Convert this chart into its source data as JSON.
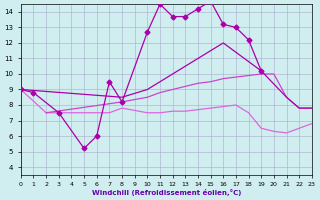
{
  "bg_color": "#d0eef0",
  "grid_color": "#aaaacc",
  "line_color1": "#aa00aa",
  "line_color2": "#aa00aa",
  "line_color3": "#cc44cc",
  "line_color4": "#dd66dd",
  "xlabel": "Windchill (Refroidissement éolien,°C)",
  "xlabel_color": "#6600aa",
  "xlim": [
    0,
    23
  ],
  "ylim": [
    3.5,
    14.5
  ],
  "yticks": [
    4,
    5,
    6,
    7,
    8,
    9,
    10,
    11,
    12,
    13,
    14
  ],
  "line1": {
    "x": [
      0,
      1,
      3,
      5,
      6,
      7,
      8,
      10,
      11,
      12,
      13,
      14,
      15,
      16,
      17,
      18,
      19
    ],
    "y": [
      9,
      8.8,
      7.5,
      5.2,
      6.0,
      9.5,
      8.2,
      12.7,
      14.5,
      13.7,
      13.7,
      14.2,
      14.7,
      13.2,
      13.0,
      12.2,
      10.2
    ],
    "markersize": 2.5,
    "lw": 0.9
  },
  "line2": {
    "x": [
      0,
      8,
      10,
      11,
      12,
      13,
      14,
      15,
      16,
      19,
      21,
      22,
      23
    ],
    "y": [
      9,
      8.5,
      9.0,
      9.5,
      10.0,
      10.5,
      11.0,
      11.5,
      12.0,
      10.2,
      8.5,
      7.8,
      7.8
    ],
    "lw": 0.9
  },
  "line3": {
    "x": [
      2,
      8,
      10,
      11,
      12,
      13,
      14,
      15,
      16,
      17,
      18,
      19,
      20,
      21,
      22,
      23
    ],
    "y": [
      7.5,
      8.2,
      8.5,
      8.8,
      9.0,
      9.2,
      9.4,
      9.5,
      9.7,
      9.8,
      9.9,
      10.0,
      10.0,
      8.5,
      7.8,
      7.8
    ],
    "lw": 0.9
  },
  "line4": {
    "x": [
      0,
      2,
      3,
      4,
      5,
      6,
      7,
      8,
      10,
      11,
      12,
      13,
      14,
      15,
      16,
      17,
      18,
      19,
      20,
      21,
      22,
      23
    ],
    "y": [
      9,
      7.5,
      7.5,
      7.5,
      7.5,
      7.5,
      7.5,
      7.8,
      7.5,
      7.5,
      7.6,
      7.6,
      7.7,
      7.8,
      7.9,
      8.0,
      7.5,
      6.5,
      6.3,
      6.2,
      6.5,
      6.8
    ],
    "lw": 0.9
  }
}
